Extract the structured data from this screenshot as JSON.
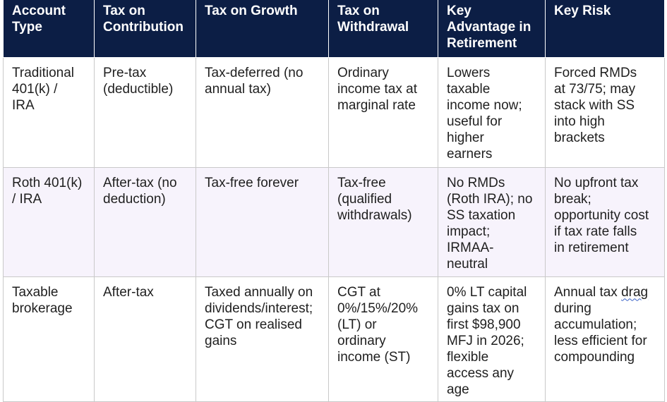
{
  "table": {
    "headers": [
      "Account\nType",
      "Tax on\nContribution",
      "Tax on Growth",
      "Tax on\nWithdrawal",
      "Key\nAdvantage in\nRetirement",
      "Key Risk"
    ],
    "rows": [
      [
        "Traditional\n401(k) /\nIRA",
        "Pre-tax\n(deductible)",
        "Tax-deferred (no\nannual tax)",
        "Ordinary\nincome tax at\nmarginal rate",
        "Lowers\ntaxable\nincome now;\nuseful for\nhigher\nearners",
        "Forced RMDs\nat 73/75; may\nstack with SS\ninto high\nbrackets"
      ],
      [
        "Roth 401(k)\n/ IRA",
        "After-tax (no\ndeduction)",
        "Tax-free forever",
        "Tax-free\n(qualified\nwithdrawals)",
        "No RMDs\n(Roth IRA); no\nSS taxation\nimpact;\nIRMAA-\nneutral",
        "No upfront tax\nbreak;\nopportunity cost\nif tax rate falls\nin retirement"
      ],
      [
        "Taxable\nbrokerage",
        "After-tax",
        "Taxed annually on\ndividends/interest;\nCGT on realised\ngains",
        "CGT at\n0%/15%/20%\n(LT) or\nordinary\nincome (ST)",
        "0% LT capital\ngains tax on\nfirst $98,900\nMFJ in 2026;\nflexible\naccess any\nage",
        "Annual tax drag\nduring\naccumulation;\nless efficient for\ncompounding"
      ]
    ]
  },
  "colors": {
    "header_bg": "#0c1e45",
    "header_text": "#ffffff",
    "row_alt_bg": "#f7f3fc",
    "border": "#c9c9c9",
    "spellcheck_underline": "#3a63c8"
  }
}
